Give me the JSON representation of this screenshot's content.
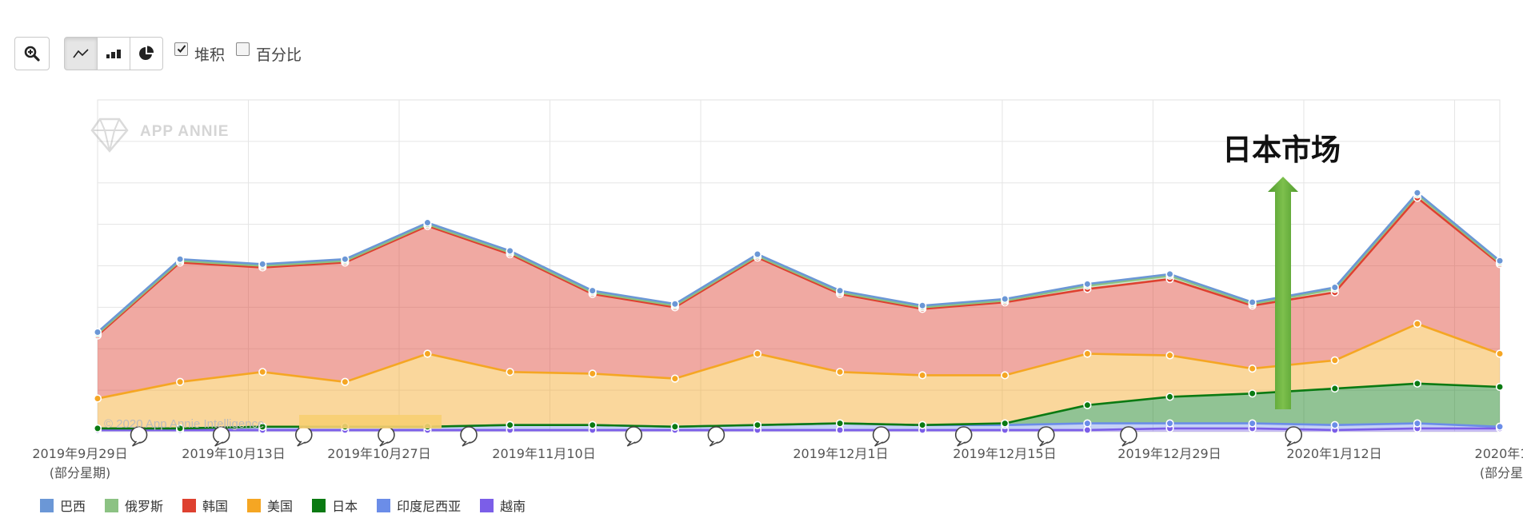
{
  "toolbar": {
    "zoom_icon": "zoom-in-icon",
    "chart_types": [
      {
        "name": "line-chart-icon",
        "active": true
      },
      {
        "name": "bar-chart-icon",
        "active": false
      },
      {
        "name": "pie-chart-icon",
        "active": false
      }
    ],
    "stacked_label": "堆积",
    "stacked_checked": true,
    "percent_label": "百分比",
    "percent_checked": false
  },
  "watermark": {
    "logo_text": "APP ANNIE",
    "copyright": "© 2020 App Annie Intelligence"
  },
  "annotation": {
    "text": "日本市场",
    "arrow_color": "#5fa83a"
  },
  "x_labels": [
    {
      "text": "2019年9月29日",
      "sub": "(部分星期)"
    },
    {
      "text": "2019年10月13日",
      "sub": ""
    },
    {
      "text": "2019年10月27日",
      "sub": ""
    },
    {
      "text": "2019年11月10日",
      "sub": ""
    },
    {
      "text": "2019年12月1日",
      "sub": ""
    },
    {
      "text": "2019年12月15日",
      "sub": ""
    },
    {
      "text": "2019年12月29日",
      "sub": ""
    },
    {
      "text": "2020年1月12日",
      "sub": ""
    },
    {
      "text": "2020年1",
      "sub": "(部分星"
    }
  ],
  "chart_data": {
    "type": "area",
    "stacked": true,
    "points": 18,
    "ylim": [
      0,
      100
    ],
    "grid": true,
    "legend_position": "bottom-left",
    "series": [
      {
        "name": "越南",
        "color": "#7b5ee8",
        "values": [
          0.5,
          0.5,
          0.5,
          0.5,
          0.5,
          0.5,
          0.5,
          0.5,
          0.5,
          0.5,
          0.5,
          0.5,
          0.5,
          1,
          1,
          0.5,
          1,
          1
        ]
      },
      {
        "name": "印度尼西亚",
        "color": "#6b8de8",
        "values": [
          0.5,
          0.5,
          1,
          1,
          1,
          1.5,
          1.5,
          1,
          1.5,
          2,
          1.5,
          1.5,
          2,
          1.5,
          1.5,
          1.5,
          1.5,
          0.5
        ]
      },
      {
        "name": "日本",
        "color": "#0a7a12",
        "values": [
          0,
          0,
          0,
          0,
          0,
          0,
          0,
          0,
          0,
          0,
          0,
          0.5,
          5.5,
          8,
          9,
          11,
          12,
          12
        ]
      },
      {
        "name": "美国",
        "color": "#f5a623",
        "values": [
          9,
          14,
          16.5,
          13.5,
          22,
          16,
          15.5,
          14.5,
          21.5,
          15.5,
          15,
          14.5,
          15.5,
          12.5,
          7.5,
          8.5,
          18,
          10
        ]
      },
      {
        "name": "韩国",
        "color": "#de4130",
        "values": [
          19,
          36,
          31.5,
          36,
          38.5,
          35.5,
          24,
          21.5,
          29,
          23.5,
          20,
          22,
          19.5,
          23,
          19,
          20.5,
          38,
          27
        ]
      },
      {
        "name": "俄罗斯",
        "color": "#8cc283",
        "values": [
          0.5,
          0.5,
          0.5,
          0.5,
          0.5,
          0.5,
          0.5,
          0.5,
          0.5,
          0.5,
          0.5,
          0.5,
          1,
          1,
          0.5,
          1,
          1,
          0.5
        ]
      },
      {
        "name": "巴西",
        "color": "#6b97d6",
        "values": [
          0.5,
          0.5,
          0.5,
          0.5,
          0.5,
          0.5,
          0.5,
          0.5,
          0.5,
          0.5,
          0.5,
          0.5,
          0.5,
          0.5,
          0.5,
          0.5,
          0.5,
          0.5
        ]
      }
    ]
  },
  "legend": [
    {
      "label": "巴西",
      "color": "#6b97d6"
    },
    {
      "label": "俄罗斯",
      "color": "#8cc283"
    },
    {
      "label": "韩国",
      "color": "#de4130"
    },
    {
      "label": "美国",
      "color": "#f5a623"
    },
    {
      "label": "日本",
      "color": "#0a7a12"
    },
    {
      "label": "印度尼西亚",
      "color": "#6b8de8"
    },
    {
      "label": "越南",
      "color": "#7b5ee8"
    }
  ]
}
